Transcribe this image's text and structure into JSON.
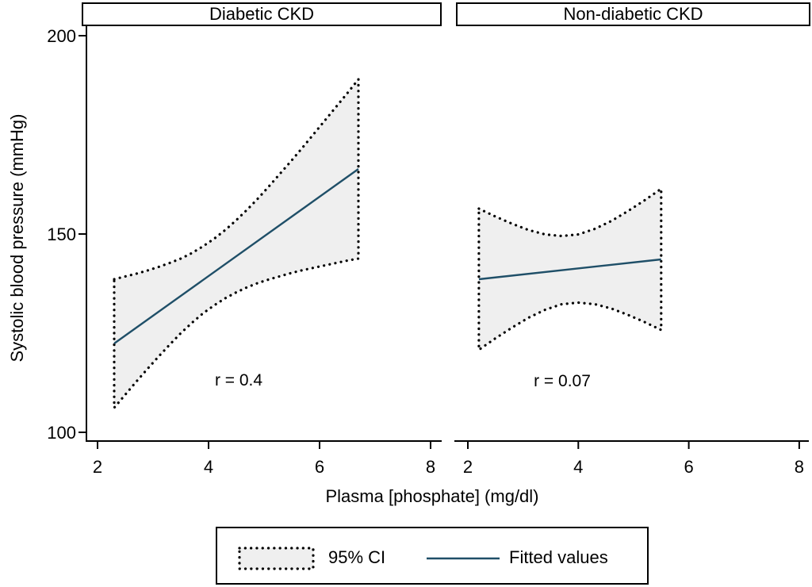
{
  "figure": {
    "y_axis_title": "Systolic blood pressure (mmHg)",
    "x_axis_title": "Plasma [phosphate] (mg/dl)",
    "legend": {
      "position": "bottom",
      "ci_label": "95% CI",
      "fitted_label": "Fitted values"
    }
  },
  "colors": {
    "fitted_line": "#1f4f68",
    "ci_fill": "#efefef",
    "ci_border": "#000000",
    "axis": "#000000",
    "background": "#ffffff"
  },
  "chart_data": [
    {
      "type": "line",
      "title": "Diabetic CKD",
      "annotation": "r = 0.4",
      "xlabel": "Plasma [phosphate] (mg/dl)",
      "ylabel": "Systolic blood pressure (mmHg)",
      "xlim": [
        1.8,
        8.2
      ],
      "ylim": [
        98,
        202
      ],
      "x_ticks": [
        2,
        4,
        6,
        8
      ],
      "y_ticks": [
        100,
        150,
        200
      ],
      "grid": false,
      "fitted": {
        "name": "Fitted values",
        "x": [
          2.3,
          6.7
        ],
        "y": [
          122.4,
          166.4
        ]
      },
      "ci_band": {
        "name": "95% CI",
        "x": [
          2.3,
          2.5,
          2.7,
          2.9,
          3.1,
          3.3,
          3.5,
          3.7,
          3.9,
          4.1,
          4.3,
          4.5,
          4.7,
          4.9,
          5.1,
          5.3,
          5.5,
          5.7,
          5.9,
          6.1,
          6.3,
          6.5,
          6.7
        ],
        "upper": [
          138.6,
          139.3,
          140.0,
          140.8,
          141.7,
          142.7,
          143.8,
          145.2,
          146.9,
          148.8,
          151.0,
          153.5,
          156.2,
          159.1,
          162.2,
          165.4,
          168.6,
          171.9,
          175.3,
          178.7,
          182.1,
          185.5,
          189.0
        ],
        "lower": [
          106.2,
          109.5,
          112.8,
          116.0,
          119.1,
          122.1,
          125.0,
          127.6,
          130.0,
          132.0,
          133.8,
          135.3,
          136.6,
          137.7,
          138.6,
          139.4,
          140.2,
          140.9,
          141.5,
          142.1,
          142.7,
          143.3,
          143.8
        ]
      }
    },
    {
      "type": "line",
      "title": "Non-diabetic CKD",
      "annotation": "r = 0.07",
      "xlabel": "Plasma [phosphate] (mg/dl)",
      "ylabel": "Systolic blood pressure (mmHg)",
      "xlim": [
        1.8,
        8.2
      ],
      "ylim": [
        98,
        202
      ],
      "x_ticks": [
        2,
        4,
        6,
        8
      ],
      "y_ticks": [],
      "grid": false,
      "fitted": {
        "name": "Fitted values",
        "x": [
          2.2,
          5.5
        ],
        "y": [
          138.6,
          143.6
        ]
      },
      "ci_band": {
        "name": "95% CI",
        "x": [
          2.2,
          2.5,
          2.8,
          3.1,
          3.4,
          3.7,
          4.0,
          4.3,
          4.6,
          4.9,
          5.2,
          5.5
        ],
        "upper": [
          156.4,
          154.4,
          152.6,
          151.0,
          149.9,
          149.5,
          149.9,
          151.3,
          153.3,
          155.8,
          158.5,
          161.4
        ],
        "lower": [
          120.8,
          123.7,
          126.4,
          128.9,
          130.9,
          132.3,
          132.7,
          132.3,
          131.2,
          129.6,
          127.8,
          125.8
        ]
      }
    }
  ]
}
